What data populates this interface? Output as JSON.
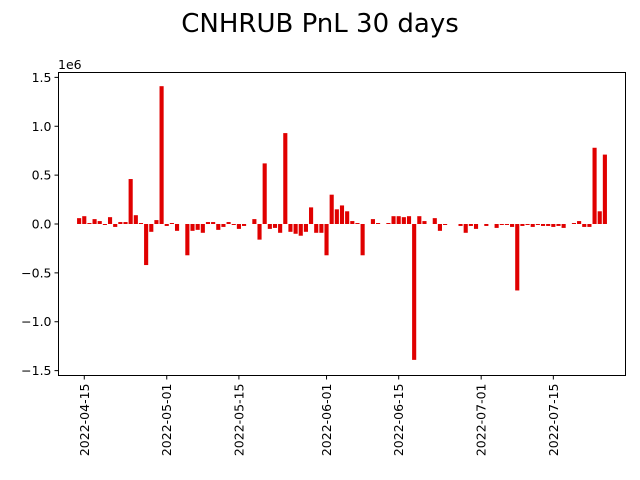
{
  "chart_data": {
    "type": "bar",
    "title": "CNHRUB PnL 30 days",
    "xlabel": "",
    "ylabel": "",
    "y_offset_label": "1e6",
    "bar_color": "#e00000",
    "grid": false,
    "legend": "none",
    "ylim": [
      -1.55,
      1.55
    ],
    "xlim": [
      "2022-04-10",
      "2022-07-29"
    ],
    "y_ticks": [
      -1.5,
      -1.0,
      -0.5,
      0.0,
      0.5,
      1.0,
      1.5
    ],
    "y_tick_labels": [
      "−1.5",
      "−1.0",
      "−0.5",
      "0.0",
      "0.5",
      "1.0",
      "1.5"
    ],
    "x_ticks": [
      "2022-04-15",
      "2022-05-01",
      "2022-05-15",
      "2022-06-01",
      "2022-06-15",
      "2022-07-01",
      "2022-07-15"
    ],
    "x_tick_labels": [
      "2022-04-15",
      "2022-05-01",
      "2022-05-15",
      "2022-06-01",
      "2022-06-15",
      "2022-07-01",
      "2022-07-15"
    ],
    "bars": [
      {
        "x": "2022-04-14",
        "y": 0.06
      },
      {
        "x": "2022-04-15",
        "y": 0.08
      },
      {
        "x": "2022-04-16",
        "y": 0.01
      },
      {
        "x": "2022-04-17",
        "y": 0.05
      },
      {
        "x": "2022-04-18",
        "y": 0.03
      },
      {
        "x": "2022-04-19",
        "y": -0.01
      },
      {
        "x": "2022-04-20",
        "y": 0.07
      },
      {
        "x": "2022-04-21",
        "y": -0.03
      },
      {
        "x": "2022-04-22",
        "y": 0.02
      },
      {
        "x": "2022-04-23",
        "y": 0.02
      },
      {
        "x": "2022-04-24",
        "y": 0.46
      },
      {
        "x": "2022-04-25",
        "y": 0.09
      },
      {
        "x": "2022-04-26",
        "y": 0.01
      },
      {
        "x": "2022-04-27",
        "y": -0.42
      },
      {
        "x": "2022-04-28",
        "y": -0.08
      },
      {
        "x": "2022-04-29",
        "y": 0.04
      },
      {
        "x": "2022-04-30",
        "y": 1.41
      },
      {
        "x": "2022-05-01",
        "y": -0.02
      },
      {
        "x": "2022-05-02",
        "y": 0.01
      },
      {
        "x": "2022-05-03",
        "y": -0.07
      },
      {
        "x": "2022-05-05",
        "y": -0.32
      },
      {
        "x": "2022-05-06",
        "y": -0.07
      },
      {
        "x": "2022-05-07",
        "y": -0.06
      },
      {
        "x": "2022-05-08",
        "y": -0.09
      },
      {
        "x": "2022-05-09",
        "y": 0.02
      },
      {
        "x": "2022-05-10",
        "y": 0.02
      },
      {
        "x": "2022-05-11",
        "y": -0.06
      },
      {
        "x": "2022-05-12",
        "y": -0.03
      },
      {
        "x": "2022-05-13",
        "y": 0.02
      },
      {
        "x": "2022-05-14",
        "y": -0.01
      },
      {
        "x": "2022-05-15",
        "y": -0.05
      },
      {
        "x": "2022-05-16",
        "y": -0.02
      },
      {
        "x": "2022-05-18",
        "y": 0.05
      },
      {
        "x": "2022-05-19",
        "y": -0.16
      },
      {
        "x": "2022-05-20",
        "y": 0.62
      },
      {
        "x": "2022-05-21",
        "y": -0.05
      },
      {
        "x": "2022-05-22",
        "y": -0.04
      },
      {
        "x": "2022-05-23",
        "y": -0.09
      },
      {
        "x": "2022-05-24",
        "y": 0.93
      },
      {
        "x": "2022-05-25",
        "y": -0.08
      },
      {
        "x": "2022-05-26",
        "y": -0.1
      },
      {
        "x": "2022-05-27",
        "y": -0.12
      },
      {
        "x": "2022-05-28",
        "y": -0.08
      },
      {
        "x": "2022-05-29",
        "y": 0.17
      },
      {
        "x": "2022-05-30",
        "y": -0.09
      },
      {
        "x": "2022-05-31",
        "y": -0.09
      },
      {
        "x": "2022-06-01",
        "y": -0.32
      },
      {
        "x": "2022-06-02",
        "y": 0.3
      },
      {
        "x": "2022-06-03",
        "y": 0.15
      },
      {
        "x": "2022-06-04",
        "y": 0.19
      },
      {
        "x": "2022-06-05",
        "y": 0.13
      },
      {
        "x": "2022-06-06",
        "y": 0.03
      },
      {
        "x": "2022-06-07",
        "y": 0.01
      },
      {
        "x": "2022-06-08",
        "y": -0.32
      },
      {
        "x": "2022-06-10",
        "y": 0.05
      },
      {
        "x": "2022-06-11",
        "y": 0.01
      },
      {
        "x": "2022-06-13",
        "y": 0.01
      },
      {
        "x": "2022-06-14",
        "y": 0.08
      },
      {
        "x": "2022-06-15",
        "y": 0.08
      },
      {
        "x": "2022-06-16",
        "y": 0.07
      },
      {
        "x": "2022-06-17",
        "y": 0.08
      },
      {
        "x": "2022-06-18",
        "y": -1.39
      },
      {
        "x": "2022-06-19",
        "y": 0.08
      },
      {
        "x": "2022-06-20",
        "y": 0.03
      },
      {
        "x": "2022-06-22",
        "y": 0.06
      },
      {
        "x": "2022-06-23",
        "y": -0.07
      },
      {
        "x": "2022-06-24",
        "y": -0.01
      },
      {
        "x": "2022-06-27",
        "y": -0.02
      },
      {
        "x": "2022-06-28",
        "y": -0.09
      },
      {
        "x": "2022-06-29",
        "y": -0.02
      },
      {
        "x": "2022-06-30",
        "y": -0.05
      },
      {
        "x": "2022-07-02",
        "y": -0.02
      },
      {
        "x": "2022-07-04",
        "y": -0.04
      },
      {
        "x": "2022-07-05",
        "y": -0.01
      },
      {
        "x": "2022-07-06",
        "y": -0.01
      },
      {
        "x": "2022-07-07",
        "y": -0.03
      },
      {
        "x": "2022-07-08",
        "y": -0.68
      },
      {
        "x": "2022-07-09",
        "y": -0.02
      },
      {
        "x": "2022-07-10",
        "y": -0.01
      },
      {
        "x": "2022-07-11",
        "y": -0.03
      },
      {
        "x": "2022-07-12",
        "y": -0.01
      },
      {
        "x": "2022-07-13",
        "y": -0.02
      },
      {
        "x": "2022-07-14",
        "y": -0.02
      },
      {
        "x": "2022-07-15",
        "y": -0.03
      },
      {
        "x": "2022-07-16",
        "y": -0.02
      },
      {
        "x": "2022-07-17",
        "y": -0.04
      },
      {
        "x": "2022-07-19",
        "y": 0.01
      },
      {
        "x": "2022-07-20",
        "y": 0.03
      },
      {
        "x": "2022-07-21",
        "y": -0.03
      },
      {
        "x": "2022-07-22",
        "y": -0.03
      },
      {
        "x": "2022-07-23",
        "y": 0.78
      },
      {
        "x": "2022-07-24",
        "y": 0.13
      },
      {
        "x": "2022-07-25",
        "y": 0.71
      }
    ]
  }
}
